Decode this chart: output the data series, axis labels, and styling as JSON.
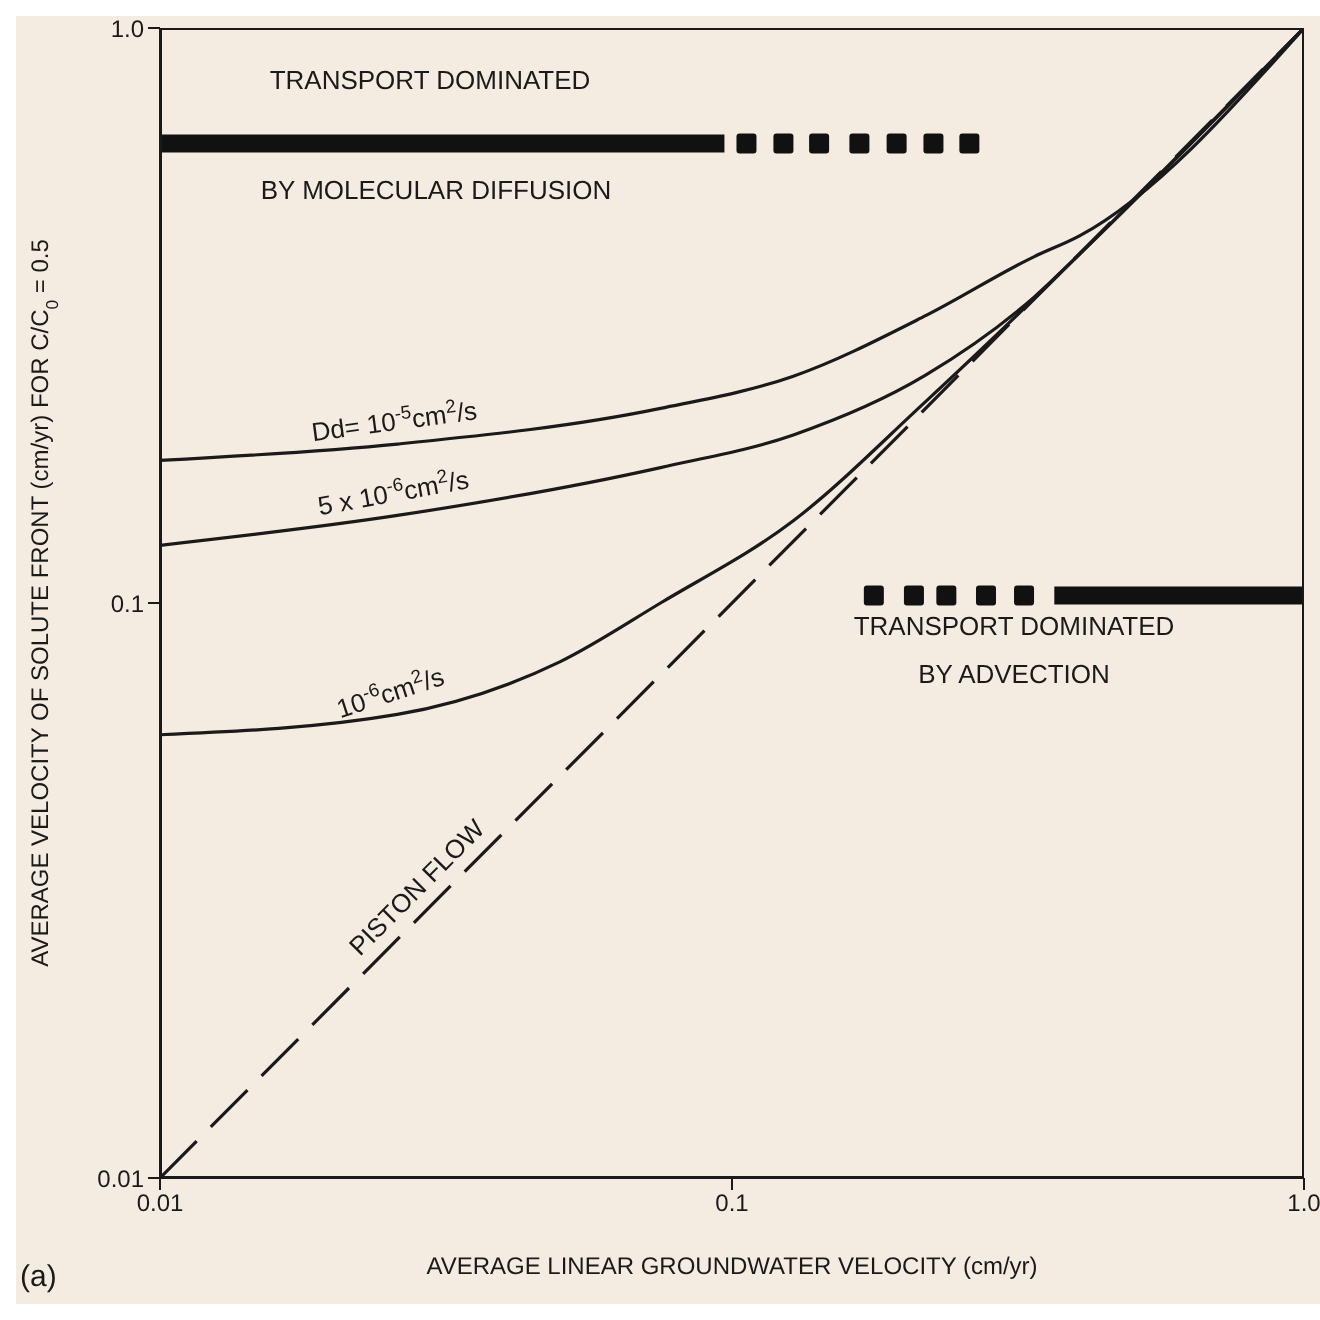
{
  "chart_data": {
    "type": "line",
    "xlabel": "AVERAGE LINEAR GROUNDWATER VELOCITY (cm/yr)",
    "ylabel": "AVERAGE VELOCITY OF SOLUTE FRONT (cm/yr) FOR C/C$_{0}$ = 0.5",
    "log": "xy",
    "xlim": [
      0.01,
      1
    ],
    "ylim": [
      0.01,
      1
    ],
    "xticks": [
      0.01,
      0.1,
      {
        "value": 1,
        "label": "1.0"
      }
    ],
    "yticks": [
      0.01,
      0.1,
      {
        "value": 1,
        "label": "1.0"
      }
    ],
    "grid": false,
    "legend": false,
    "series": [
      {
        "name": "Dd= 10$^{-5}$cm$^{2}$/s",
        "color": "#1a1a1a",
        "x": [
          0.01,
          0.026,
          0.075,
          0.128,
          0.218,
          0.337,
          0.405,
          1
        ],
        "values": [
          0.177,
          0.189,
          0.218,
          0.248,
          0.316,
          0.4,
          0.435,
          1
        ]
      },
      {
        "name": "5 x 10$^{-6}$cm$^{2}$/s",
        "color": "#1a1a1a",
        "x": [
          0.01,
          0.026,
          0.075,
          0.128,
          0.218,
          0.337,
          0.416,
          1
        ],
        "values": [
          0.126,
          0.142,
          0.172,
          0.196,
          0.249,
          0.34,
          0.415,
          1
        ]
      },
      {
        "name": "10$^{-6}$cm$^{2}$/s",
        "color": "#1a1a1a",
        "x": [
          0.01,
          0.026,
          0.05,
          0.075,
          0.128,
          0.218,
          1
        ],
        "values": [
          0.059,
          0.064,
          0.079,
          0.1,
          0.139,
          0.224,
          1
        ]
      },
      {
        "name": "PISTON FLOW",
        "color": "#1a1a1a",
        "line_style": "dashed",
        "x": [
          0.01,
          0.03,
          1
        ],
        "values": [
          0.01,
          0.03,
          1
        ]
      },
      {
        "color": "#111111",
        "x": [
          0.01,
          0.097
        ],
        "values": [
          0.63,
          0.63
        ]
      },
      {
        "type": "scatter",
        "marker": "square",
        "color": "#111111",
        "x": [
          0.106,
          0.123,
          0.142,
          0.167,
          0.194,
          0.225,
          0.26
        ],
        "values": [
          0.63,
          0.63,
          0.63,
          0.63,
          0.63,
          0.63,
          0.63
        ]
      },
      {
        "type": "scatter",
        "marker": "square",
        "color": "#111111",
        "x": [
          0.177,
          0.208,
          0.237,
          0.278,
          0.324
        ],
        "values": [
          0.103,
          0.103,
          0.103,
          0.103,
          0.103
        ]
      },
      {
        "color": "#111111",
        "x": [
          0.366,
          1
        ],
        "values": [
          0.103,
          0.103
        ]
      }
    ],
    "annotations": [
      "TRANSPORT DOMINATED",
      "BY MOLECULAR DIFFUSION",
      "TRANSPORT DOMINATED",
      "BY ADVECTION",
      "(a)"
    ]
  }
}
